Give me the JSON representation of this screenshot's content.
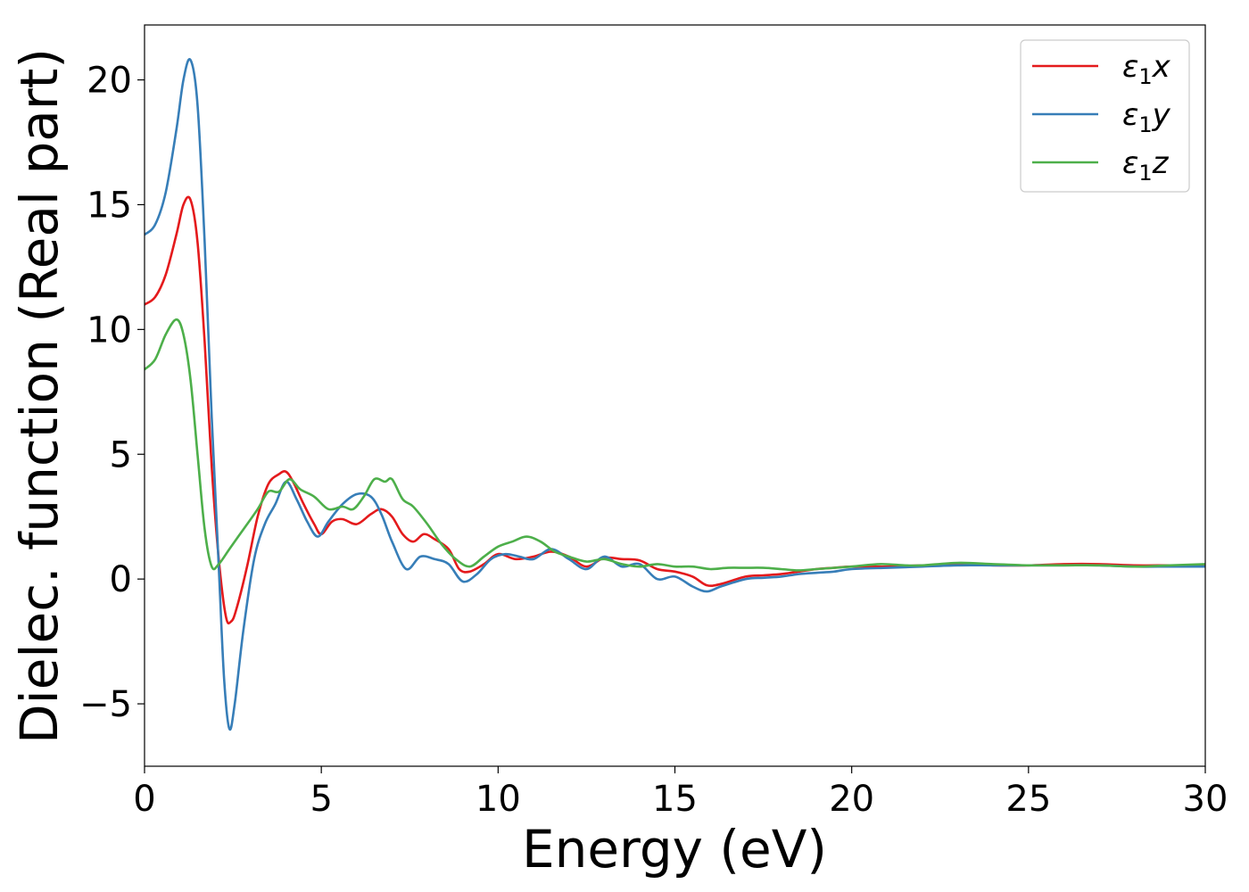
{
  "chart_data": {
    "type": "line",
    "title": "",
    "xlabel": "Energy (eV)",
    "ylabel": "Dielec. function (Real part)",
    "xlim": [
      0,
      30
    ],
    "ylim": [
      -7.5,
      22.2
    ],
    "xticks": [
      0,
      5,
      10,
      15,
      20,
      25,
      30
    ],
    "yticks": [
      -5,
      0,
      5,
      10,
      15,
      20
    ],
    "xtick_labels": [
      "0",
      "5",
      "10",
      "15",
      "20",
      "25",
      "30"
    ],
    "ytick_labels": [
      "−5",
      "0",
      "5",
      "10",
      "15",
      "20"
    ],
    "grid": false,
    "legend_position": "top-right",
    "series": [
      {
        "name": "ε₁x",
        "legend_base": "ε",
        "legend_sub": "1",
        "legend_tail": "x",
        "color": "#e41a1c",
        "points": [
          [
            0,
            11.0
          ],
          [
            0.3,
            11.3
          ],
          [
            0.6,
            12.2
          ],
          [
            0.9,
            13.8
          ],
          [
            1.1,
            15.0
          ],
          [
            1.3,
            15.2
          ],
          [
            1.5,
            13.5
          ],
          [
            1.7,
            9.5
          ],
          [
            1.9,
            4.5
          ],
          [
            2.1,
            0.8
          ],
          [
            2.3,
            -1.5
          ],
          [
            2.45,
            -1.7
          ],
          [
            2.6,
            -1.2
          ],
          [
            2.9,
            0.5
          ],
          [
            3.2,
            2.5
          ],
          [
            3.5,
            3.8
          ],
          [
            3.8,
            4.2
          ],
          [
            4.0,
            4.3
          ],
          [
            4.2,
            3.9
          ],
          [
            4.5,
            3.0
          ],
          [
            4.8,
            2.2
          ],
          [
            5.0,
            1.8
          ],
          [
            5.3,
            2.3
          ],
          [
            5.6,
            2.4
          ],
          [
            6.0,
            2.2
          ],
          [
            6.4,
            2.6
          ],
          [
            6.7,
            2.8
          ],
          [
            7.0,
            2.5
          ],
          [
            7.3,
            1.8
          ],
          [
            7.6,
            1.5
          ],
          [
            7.9,
            1.8
          ],
          [
            8.2,
            1.6
          ],
          [
            8.6,
            1.2
          ],
          [
            8.9,
            0.4
          ],
          [
            9.2,
            0.3
          ],
          [
            9.6,
            0.6
          ],
          [
            10.0,
            1.0
          ],
          [
            10.5,
            0.8
          ],
          [
            11.0,
            0.9
          ],
          [
            11.5,
            1.1
          ],
          [
            12.0,
            0.9
          ],
          [
            12.5,
            0.5
          ],
          [
            13.0,
            0.85
          ],
          [
            13.5,
            0.8
          ],
          [
            14.0,
            0.75
          ],
          [
            14.5,
            0.4
          ],
          [
            15.0,
            0.3
          ],
          [
            15.5,
            0.1
          ],
          [
            15.9,
            -0.25
          ],
          [
            16.3,
            -0.2
          ],
          [
            17.0,
            0.1
          ],
          [
            17.5,
            0.15
          ],
          [
            18.0,
            0.2
          ],
          [
            18.5,
            0.3
          ],
          [
            19.0,
            0.4
          ],
          [
            19.5,
            0.45
          ],
          [
            20.0,
            0.5
          ],
          [
            21.0,
            0.5
          ],
          [
            22.0,
            0.55
          ],
          [
            23.0,
            0.6
          ],
          [
            24.0,
            0.55
          ],
          [
            25.0,
            0.55
          ],
          [
            26.0,
            0.6
          ],
          [
            27.0,
            0.6
          ],
          [
            28.0,
            0.55
          ],
          [
            29.0,
            0.55
          ],
          [
            30.0,
            0.55
          ]
        ]
      },
      {
        "name": "ε₁y",
        "legend_base": "ε",
        "legend_sub": "1",
        "legend_tail": "y",
        "color": "#377eb8",
        "points": [
          [
            0,
            13.8
          ],
          [
            0.3,
            14.2
          ],
          [
            0.6,
            15.5
          ],
          [
            0.9,
            18.0
          ],
          [
            1.1,
            20.0
          ],
          [
            1.3,
            20.8
          ],
          [
            1.5,
            19.0
          ],
          [
            1.7,
            13.5
          ],
          [
            1.9,
            6.5
          ],
          [
            2.1,
            0.5
          ],
          [
            2.25,
            -4.0
          ],
          [
            2.4,
            -6.0
          ],
          [
            2.55,
            -5.0
          ],
          [
            2.8,
            -2.0
          ],
          [
            3.1,
            0.8
          ],
          [
            3.4,
            2.2
          ],
          [
            3.7,
            3.0
          ],
          [
            4.0,
            3.9
          ],
          [
            4.3,
            3.2
          ],
          [
            4.6,
            2.3
          ],
          [
            4.9,
            1.7
          ],
          [
            5.2,
            2.3
          ],
          [
            5.6,
            3.0
          ],
          [
            6.0,
            3.4
          ],
          [
            6.4,
            3.3
          ],
          [
            6.7,
            2.6
          ],
          [
            7.0,
            1.5
          ],
          [
            7.4,
            0.4
          ],
          [
            7.8,
            0.9
          ],
          [
            8.2,
            0.8
          ],
          [
            8.6,
            0.6
          ],
          [
            9.0,
            -0.1
          ],
          [
            9.4,
            0.2
          ],
          [
            9.8,
            0.8
          ],
          [
            10.2,
            1.0
          ],
          [
            10.6,
            0.9
          ],
          [
            11.0,
            0.8
          ],
          [
            11.5,
            1.2
          ],
          [
            12.0,
            0.8
          ],
          [
            12.5,
            0.4
          ],
          [
            13.0,
            0.9
          ],
          [
            13.5,
            0.5
          ],
          [
            14.0,
            0.6
          ],
          [
            14.5,
            0.0
          ],
          [
            15.0,
            0.1
          ],
          [
            15.5,
            -0.3
          ],
          [
            15.9,
            -0.5
          ],
          [
            16.3,
            -0.3
          ],
          [
            17.0,
            0.0
          ],
          [
            17.5,
            0.05
          ],
          [
            18.0,
            0.1
          ],
          [
            18.5,
            0.2
          ],
          [
            19.0,
            0.25
          ],
          [
            19.5,
            0.3
          ],
          [
            20.0,
            0.4
          ],
          [
            21.0,
            0.45
          ],
          [
            22.0,
            0.5
          ],
          [
            23.0,
            0.55
          ],
          [
            24.0,
            0.55
          ],
          [
            25.0,
            0.55
          ],
          [
            26.0,
            0.55
          ],
          [
            27.0,
            0.55
          ],
          [
            28.0,
            0.5
          ],
          [
            29.0,
            0.5
          ],
          [
            30.0,
            0.5
          ]
        ]
      },
      {
        "name": "ε₁z",
        "legend_base": "ε",
        "legend_sub": "1",
        "legend_tail": "z",
        "color": "#4daf4a",
        "points": [
          [
            0,
            8.4
          ],
          [
            0.3,
            8.8
          ],
          [
            0.6,
            9.8
          ],
          [
            0.9,
            10.4
          ],
          [
            1.1,
            9.8
          ],
          [
            1.3,
            8.0
          ],
          [
            1.5,
            5.0
          ],
          [
            1.7,
            2.0
          ],
          [
            1.9,
            0.5
          ],
          [
            2.1,
            0.6
          ],
          [
            2.4,
            1.2
          ],
          [
            2.8,
            2.0
          ],
          [
            3.2,
            2.8
          ],
          [
            3.5,
            3.5
          ],
          [
            3.8,
            3.5
          ],
          [
            4.1,
            4.0
          ],
          [
            4.4,
            3.6
          ],
          [
            4.8,
            3.3
          ],
          [
            5.2,
            2.8
          ],
          [
            5.6,
            2.9
          ],
          [
            5.9,
            2.8
          ],
          [
            6.2,
            3.3
          ],
          [
            6.5,
            4.0
          ],
          [
            6.8,
            3.9
          ],
          [
            7.0,
            4.0
          ],
          [
            7.3,
            3.2
          ],
          [
            7.6,
            2.9
          ],
          [
            8.0,
            2.2
          ],
          [
            8.4,
            1.4
          ],
          [
            8.8,
            0.8
          ],
          [
            9.2,
            0.5
          ],
          [
            9.6,
            0.9
          ],
          [
            10.0,
            1.3
          ],
          [
            10.4,
            1.5
          ],
          [
            10.8,
            1.7
          ],
          [
            11.2,
            1.5
          ],
          [
            11.6,
            1.1
          ],
          [
            12.0,
            0.9
          ],
          [
            12.5,
            0.7
          ],
          [
            13.0,
            0.8
          ],
          [
            13.5,
            0.6
          ],
          [
            14.0,
            0.5
          ],
          [
            14.5,
            0.6
          ],
          [
            15.0,
            0.5
          ],
          [
            15.5,
            0.5
          ],
          [
            16.0,
            0.4
          ],
          [
            16.5,
            0.45
          ],
          [
            17.0,
            0.45
          ],
          [
            17.5,
            0.45
          ],
          [
            18.0,
            0.4
          ],
          [
            18.5,
            0.35
          ],
          [
            19.0,
            0.4
          ],
          [
            20.0,
            0.5
          ],
          [
            20.8,
            0.6
          ],
          [
            21.5,
            0.55
          ],
          [
            22.0,
            0.55
          ],
          [
            23.0,
            0.65
          ],
          [
            24.0,
            0.6
          ],
          [
            25.0,
            0.55
          ],
          [
            26.0,
            0.55
          ],
          [
            27.0,
            0.55
          ],
          [
            28.0,
            0.5
          ],
          [
            29.0,
            0.55
          ],
          [
            30.0,
            0.6
          ]
        ]
      }
    ]
  }
}
